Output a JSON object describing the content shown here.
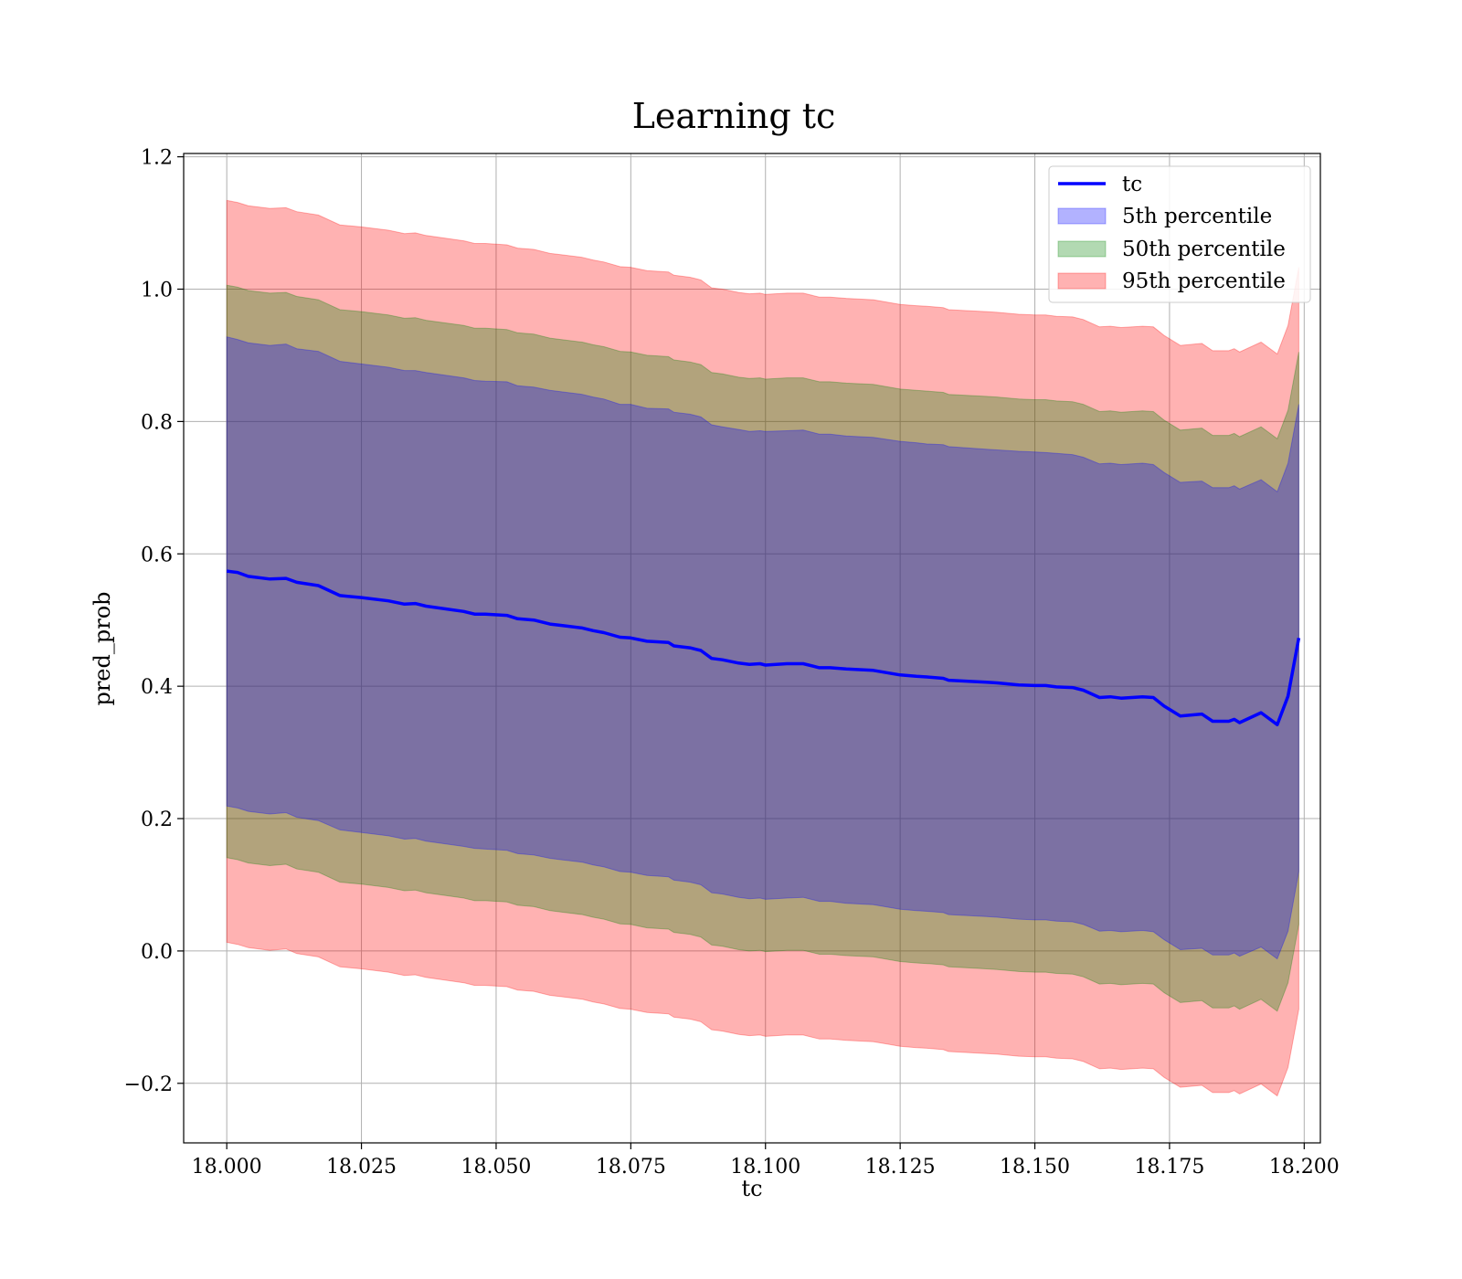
{
  "chart_data": {
    "type": "area",
    "title": "Learning tc",
    "xlabel": "tc",
    "ylabel": "pred_prob",
    "xlim": [
      17.992,
      18.203
    ],
    "ylim": [
      -0.29,
      1.205
    ],
    "xticks": [
      18.0,
      18.025,
      18.05,
      18.075,
      18.1,
      18.125,
      18.15,
      18.175,
      18.2
    ],
    "xtick_labels": [
      "18.000",
      "18.025",
      "18.050",
      "18.075",
      "18.100",
      "18.125",
      "18.150",
      "18.175",
      "18.200"
    ],
    "yticks": [
      -0.2,
      0.0,
      0.2,
      0.4,
      0.6,
      0.8,
      1.0,
      1.2
    ],
    "ytick_labels": [
      "−0.2",
      "0.0",
      "0.2",
      "0.4",
      "0.6",
      "0.8",
      "1.0",
      "1.2"
    ],
    "grid": true,
    "legend_position": "top-right",
    "x": [
      18.0,
      18.002,
      18.004,
      18.008,
      18.011,
      18.013,
      18.017,
      18.021,
      18.025,
      18.03,
      18.033,
      18.035,
      18.037,
      18.044,
      18.046,
      18.048,
      18.052,
      18.054,
      18.057,
      18.06,
      18.062,
      18.066,
      18.068,
      18.07,
      18.073,
      18.075,
      18.078,
      18.082,
      18.083,
      18.086,
      18.088,
      18.09,
      18.092,
      18.095,
      18.097,
      18.099,
      18.1,
      18.104,
      18.107,
      18.11,
      18.112,
      18.115,
      18.12,
      18.125,
      18.128,
      18.13,
      18.133,
      18.134,
      18.141,
      18.143,
      18.147,
      18.15,
      18.152,
      18.154,
      18.157,
      18.159,
      18.162,
      18.164,
      18.166,
      18.17,
      18.172,
      18.174,
      18.177,
      18.181,
      18.183,
      18.186,
      18.187,
      18.188,
      18.192,
      18.195,
      18.197,
      18.199
    ],
    "series": [
      {
        "name": "tc",
        "color": "#0000ff",
        "values": [
          0.574,
          0.572,
          0.566,
          0.562,
          0.563,
          0.557,
          0.552,
          0.537,
          0.534,
          0.529,
          0.524,
          0.525,
          0.521,
          0.513,
          0.509,
          0.509,
          0.507,
          0.502,
          0.5,
          0.494,
          0.492,
          0.488,
          0.484,
          0.481,
          0.474,
          0.473,
          0.468,
          0.466,
          0.461,
          0.458,
          0.454,
          0.442,
          0.44,
          0.435,
          0.433,
          0.434,
          0.432,
          0.434,
          0.434,
          0.428,
          0.428,
          0.426,
          0.424,
          0.417,
          0.415,
          0.414,
          0.412,
          0.409,
          0.406,
          0.405,
          0.402,
          0.401,
          0.401,
          0.399,
          0.398,
          0.394,
          0.383,
          0.384,
          0.382,
          0.384,
          0.383,
          0.37,
          0.355,
          0.358,
          0.347,
          0.347,
          0.35,
          0.345,
          0.36,
          0.342,
          0.385,
          0.473
        ]
      },
      {
        "name": "5th percentile",
        "color": "#0000ff",
        "upper": [
          0.928,
          0.924,
          0.919,
          0.915,
          0.917,
          0.91,
          0.906,
          0.891,
          0.887,
          0.882,
          0.877,
          0.877,
          0.874,
          0.866,
          0.862,
          0.861,
          0.86,
          0.854,
          0.852,
          0.847,
          0.845,
          0.841,
          0.837,
          0.834,
          0.826,
          0.826,
          0.82,
          0.819,
          0.814,
          0.811,
          0.807,
          0.795,
          0.792,
          0.788,
          0.785,
          0.786,
          0.785,
          0.786,
          0.787,
          0.781,
          0.781,
          0.778,
          0.776,
          0.77,
          0.768,
          0.766,
          0.765,
          0.762,
          0.758,
          0.757,
          0.755,
          0.754,
          0.753,
          0.752,
          0.75,
          0.746,
          0.736,
          0.737,
          0.735,
          0.737,
          0.735,
          0.723,
          0.708,
          0.71,
          0.7,
          0.7,
          0.703,
          0.698,
          0.712,
          0.694,
          0.737,
          0.826
        ],
        "lower": [
          0.219,
          0.216,
          0.211,
          0.207,
          0.209,
          0.202,
          0.197,
          0.183,
          0.179,
          0.174,
          0.169,
          0.17,
          0.166,
          0.158,
          0.155,
          0.154,
          0.152,
          0.147,
          0.145,
          0.14,
          0.138,
          0.134,
          0.13,
          0.127,
          0.12,
          0.119,
          0.114,
          0.112,
          0.107,
          0.104,
          0.1,
          0.088,
          0.086,
          0.081,
          0.079,
          0.08,
          0.078,
          0.08,
          0.081,
          0.075,
          0.075,
          0.072,
          0.07,
          0.063,
          0.061,
          0.06,
          0.058,
          0.055,
          0.052,
          0.051,
          0.048,
          0.047,
          0.047,
          0.045,
          0.044,
          0.04,
          0.03,
          0.031,
          0.029,
          0.031,
          0.029,
          0.017,
          0.002,
          0.004,
          -0.006,
          -0.006,
          -0.003,
          -0.008,
          0.006,
          -0.012,
          0.03,
          0.12
        ]
      },
      {
        "name": "50th percentile",
        "color": "#008000",
        "upper": [
          1.006,
          1.003,
          0.998,
          0.994,
          0.995,
          0.989,
          0.984,
          0.969,
          0.966,
          0.961,
          0.956,
          0.957,
          0.953,
          0.945,
          0.941,
          0.941,
          0.939,
          0.934,
          0.932,
          0.926,
          0.924,
          0.92,
          0.916,
          0.913,
          0.906,
          0.905,
          0.9,
          0.898,
          0.893,
          0.89,
          0.886,
          0.874,
          0.872,
          0.867,
          0.865,
          0.866,
          0.864,
          0.866,
          0.866,
          0.86,
          0.86,
          0.858,
          0.856,
          0.849,
          0.847,
          0.846,
          0.844,
          0.841,
          0.838,
          0.837,
          0.834,
          0.833,
          0.833,
          0.831,
          0.83,
          0.826,
          0.815,
          0.816,
          0.814,
          0.816,
          0.815,
          0.802,
          0.787,
          0.79,
          0.779,
          0.779,
          0.782,
          0.777,
          0.792,
          0.774,
          0.817,
          0.905
        ],
        "lower": [
          0.141,
          0.138,
          0.133,
          0.129,
          0.131,
          0.124,
          0.119,
          0.104,
          0.101,
          0.096,
          0.091,
          0.092,
          0.088,
          0.08,
          0.076,
          0.076,
          0.074,
          0.069,
          0.067,
          0.061,
          0.059,
          0.055,
          0.051,
          0.048,
          0.041,
          0.04,
          0.035,
          0.033,
          0.028,
          0.025,
          0.021,
          0.009,
          0.007,
          0.002,
          0.0,
          0.001,
          -0.001,
          0.001,
          0.001,
          -0.005,
          -0.005,
          -0.007,
          -0.009,
          -0.016,
          -0.018,
          -0.019,
          -0.021,
          -0.024,
          -0.027,
          -0.028,
          -0.031,
          -0.032,
          -0.032,
          -0.034,
          -0.035,
          -0.039,
          -0.05,
          -0.049,
          -0.051,
          -0.049,
          -0.05,
          -0.063,
          -0.078,
          -0.075,
          -0.086,
          -0.086,
          -0.083,
          -0.088,
          -0.073,
          -0.091,
          -0.048,
          0.04
        ]
      },
      {
        "name": "95th percentile",
        "color": "#ff0000",
        "upper": [
          1.134,
          1.131,
          1.126,
          1.122,
          1.123,
          1.117,
          1.112,
          1.097,
          1.094,
          1.089,
          1.084,
          1.085,
          1.081,
          1.073,
          1.069,
          1.069,
          1.067,
          1.062,
          1.06,
          1.054,
          1.052,
          1.048,
          1.044,
          1.041,
          1.034,
          1.033,
          1.028,
          1.026,
          1.021,
          1.018,
          1.014,
          1.002,
          1.0,
          0.995,
          0.993,
          0.994,
          0.992,
          0.994,
          0.994,
          0.988,
          0.988,
          0.986,
          0.984,
          0.977,
          0.975,
          0.974,
          0.972,
          0.969,
          0.966,
          0.965,
          0.962,
          0.961,
          0.961,
          0.959,
          0.958,
          0.954,
          0.943,
          0.944,
          0.942,
          0.944,
          0.943,
          0.93,
          0.915,
          0.918,
          0.907,
          0.907,
          0.91,
          0.905,
          0.92,
          0.902,
          0.945,
          1.033
        ],
        "lower": [
          0.013,
          0.01,
          0.005,
          0.001,
          0.003,
          -0.004,
          -0.009,
          -0.024,
          -0.027,
          -0.032,
          -0.037,
          -0.036,
          -0.04,
          -0.048,
          -0.052,
          -0.052,
          -0.054,
          -0.059,
          -0.061,
          -0.067,
          -0.069,
          -0.073,
          -0.077,
          -0.08,
          -0.087,
          -0.088,
          -0.093,
          -0.095,
          -0.1,
          -0.103,
          -0.107,
          -0.119,
          -0.121,
          -0.126,
          -0.128,
          -0.127,
          -0.129,
          -0.127,
          -0.127,
          -0.133,
          -0.133,
          -0.135,
          -0.137,
          -0.144,
          -0.146,
          -0.147,
          -0.149,
          -0.152,
          -0.155,
          -0.156,
          -0.159,
          -0.16,
          -0.16,
          -0.162,
          -0.163,
          -0.167,
          -0.178,
          -0.177,
          -0.179,
          -0.177,
          -0.178,
          -0.191,
          -0.206,
          -0.203,
          -0.214,
          -0.214,
          -0.211,
          -0.216,
          -0.201,
          -0.219,
          -0.176,
          -0.088
        ]
      }
    ]
  }
}
